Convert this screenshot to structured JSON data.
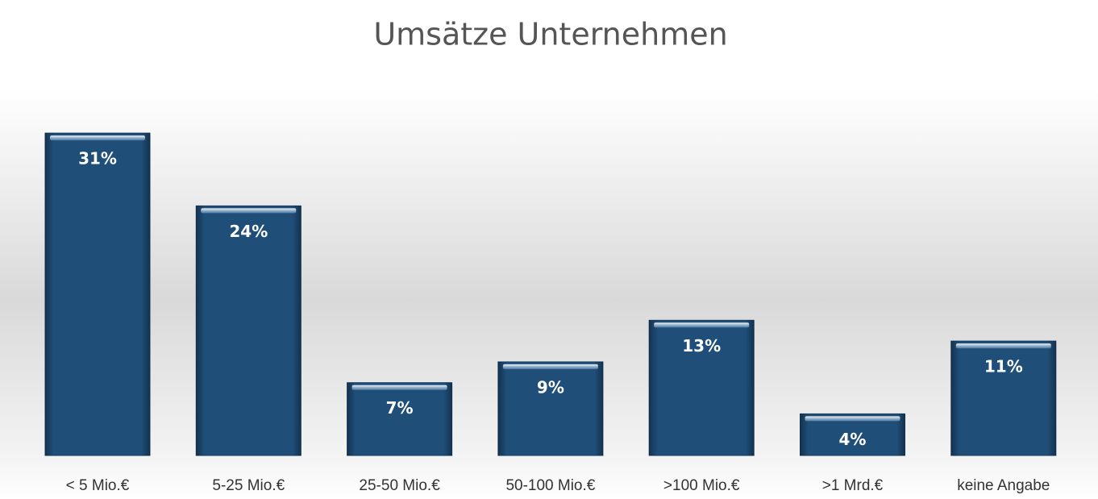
{
  "chart_data": {
    "type": "bar",
    "title": "Umsätze Unternehmen",
    "categories": [
      "< 5 Mio.€",
      "5-25 Mio.€",
      "25-50 Mio.€",
      "50-100 Mio.€",
      ">100 Mio.€",
      ">1 Mrd.€",
      "keine Angabe"
    ],
    "values": [
      31,
      24,
      7,
      9,
      13,
      4,
      11
    ],
    "value_labels": [
      "31%",
      "24%",
      "7%",
      "9%",
      "13%",
      "4%",
      "11%"
    ],
    "color": "#1f4e79"
  }
}
